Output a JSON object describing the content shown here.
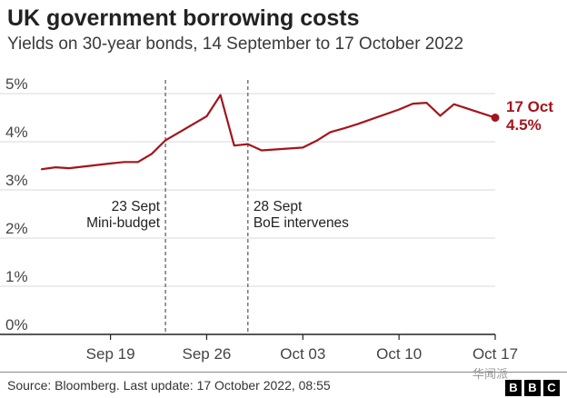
{
  "header": {
    "title": "UK government borrowing costs",
    "subtitle": "Yields on 30-year bonds, 14 September to 17 October 2022"
  },
  "footer": {
    "source": "Source: Bloomberg. Last update: 17 October 2022, 08:55",
    "watermark": "华闻派",
    "logo_letters": [
      "B",
      "B",
      "C"
    ]
  },
  "colors": {
    "series": "#a3151b",
    "grid": "#d8d8d8",
    "axis": "#222222",
    "annotation_line": "#555555"
  },
  "chart_data": {
    "type": "line",
    "title": "UK government borrowing costs",
    "subtitle": "Yields on 30-year bonds, 14 September to 17 October 2022",
    "xlabel": "",
    "ylabel": "",
    "xlim": [
      "2022-09-14",
      "2022-10-17"
    ],
    "ylim": [
      0,
      5
    ],
    "y_ticks": [
      0,
      1,
      2,
      3,
      4,
      5
    ],
    "y_tick_labels": [
      "0%",
      "1%",
      "2%",
      "3%",
      "4%",
      "5%"
    ],
    "x_ticks": [
      "2022-09-19",
      "2022-09-26",
      "2022-10-03",
      "2022-10-10",
      "2022-10-17"
    ],
    "x_tick_labels": [
      "Sep 19",
      "Sep 26",
      "Oct 03",
      "Oct 10",
      "Oct 17"
    ],
    "grid": true,
    "series": [
      {
        "x": [
          "2022-09-14",
          "2022-09-15",
          "2022-09-16",
          "2022-09-19",
          "2022-09-20",
          "2022-09-21",
          "2022-09-22",
          "2022-09-23",
          "2022-09-26",
          "2022-09-27",
          "2022-09-28",
          "2022-09-29",
          "2022-09-30",
          "2022-10-03",
          "2022-10-04",
          "2022-10-05",
          "2022-10-06",
          "2022-10-07",
          "2022-10-10",
          "2022-10-11",
          "2022-10-12",
          "2022-10-13",
          "2022-10-14",
          "2022-10-17"
        ],
        "y": [
          3.43,
          3.47,
          3.45,
          3.55,
          3.58,
          3.58,
          3.75,
          4.03,
          4.53,
          4.97,
          3.92,
          3.95,
          3.82,
          3.88,
          4.02,
          4.2,
          4.28,
          4.37,
          4.67,
          4.79,
          4.81,
          4.54,
          4.78,
          4.5
        ]
      }
    ],
    "annotations": [
      {
        "date": "2022-09-23",
        "line1": "23 Sept",
        "line2": "Mini-budget"
      },
      {
        "date": "2022-09-29",
        "line1": "28 Sept",
        "line2": "BoE intervenes"
      }
    ],
    "end_label": {
      "date_text": "17 Oct",
      "value_text": "4.5%"
    }
  }
}
